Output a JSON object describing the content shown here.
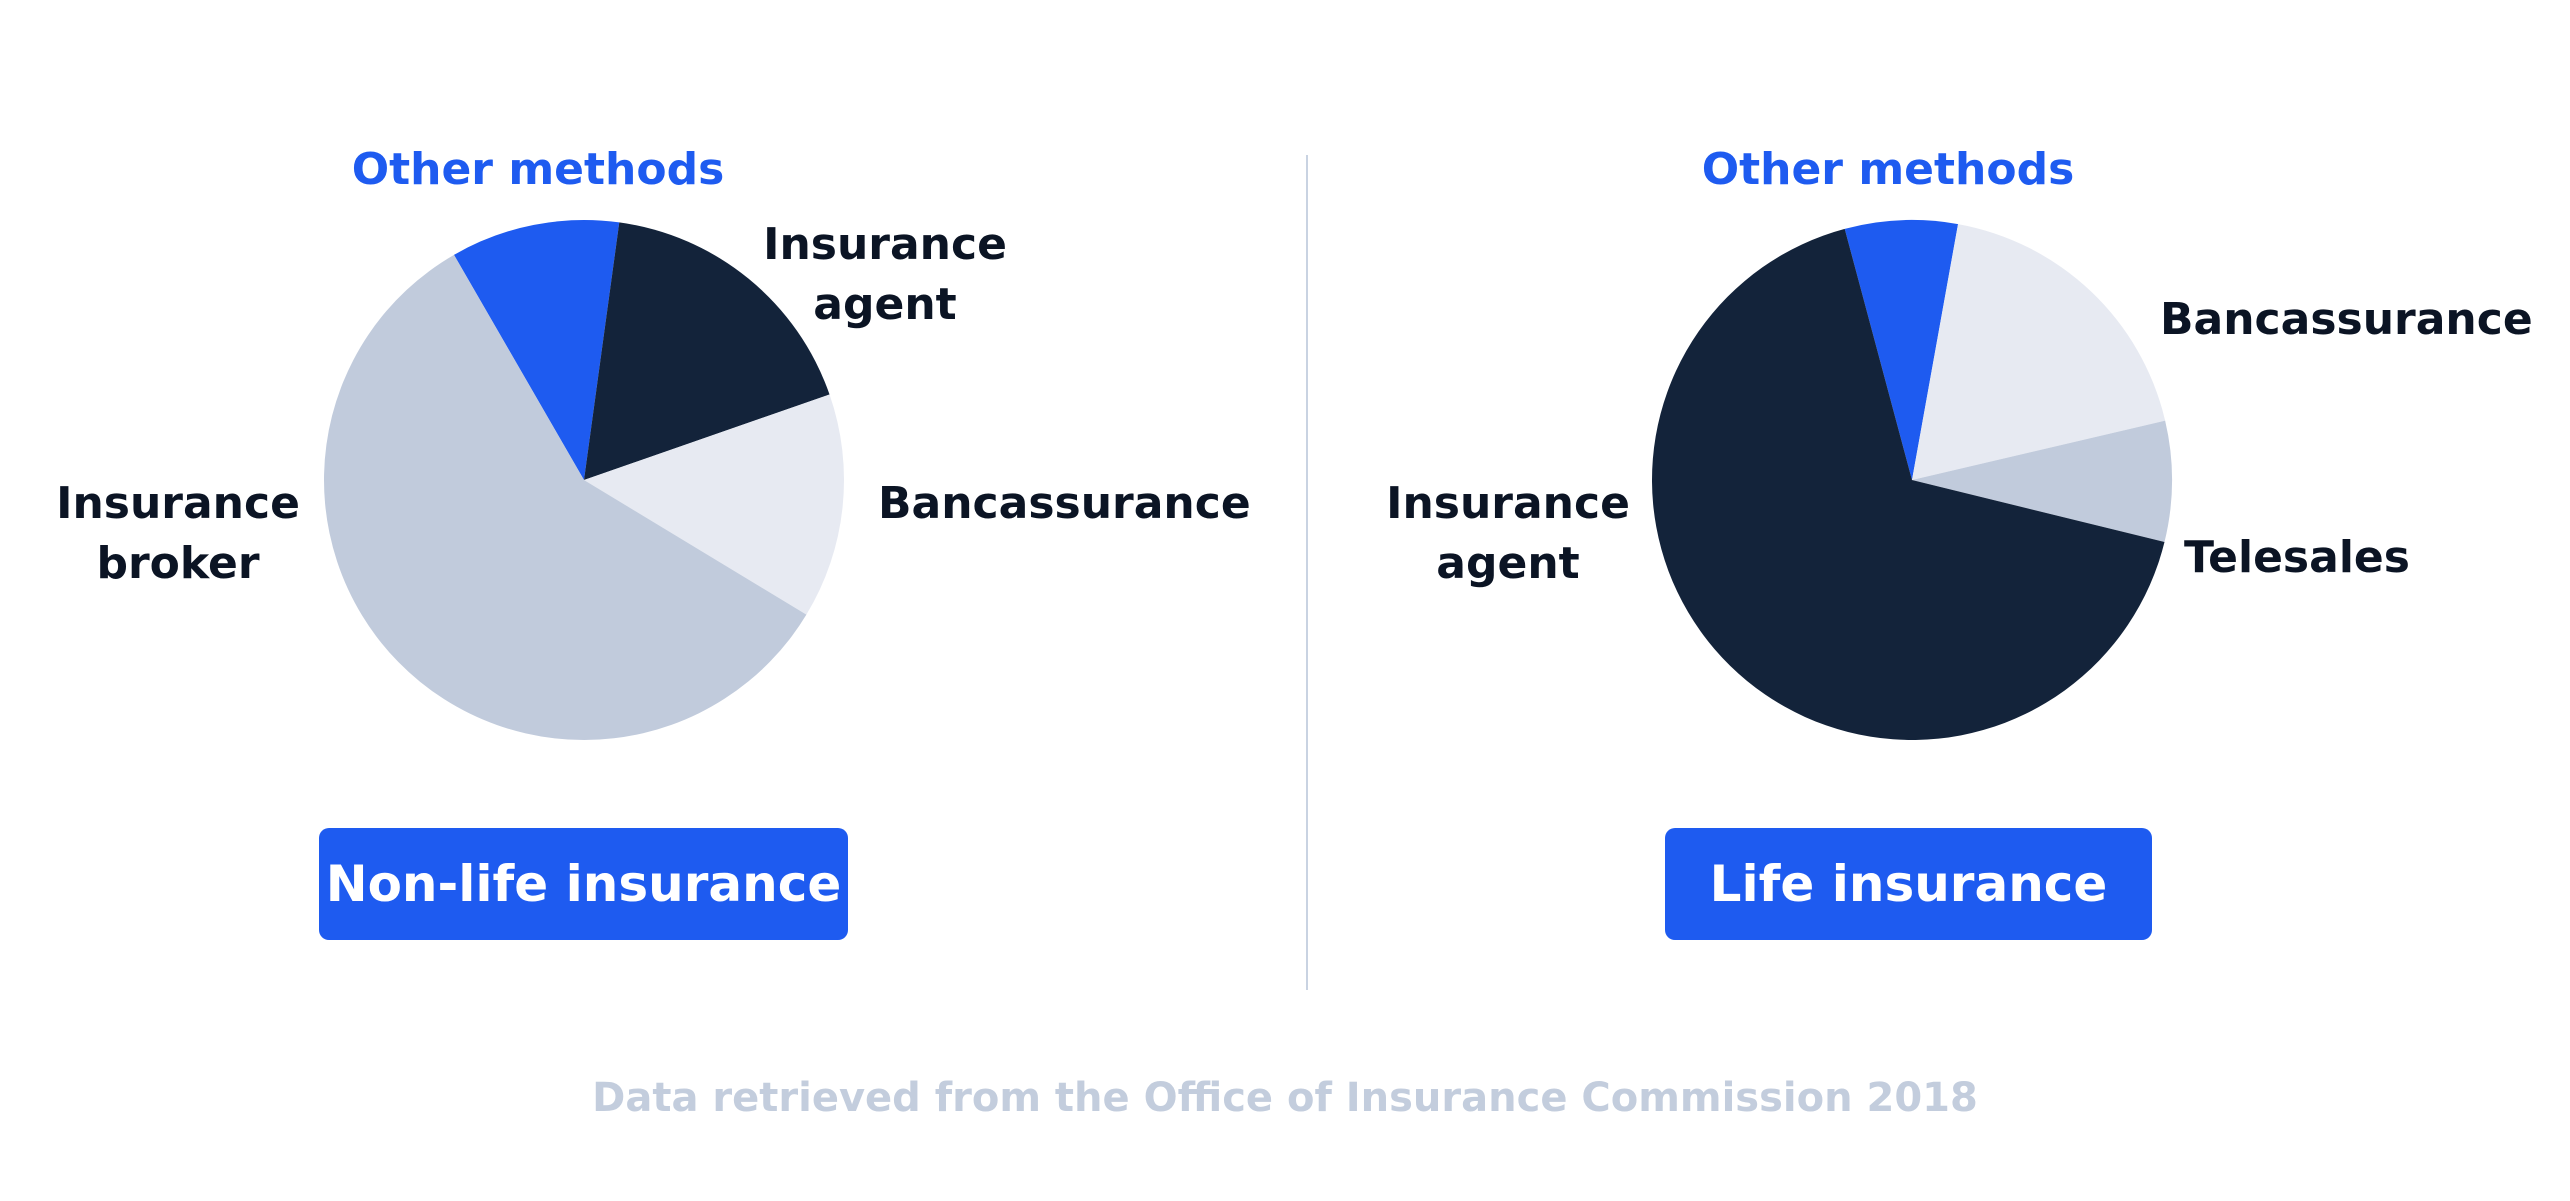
{
  "colors": {
    "dark": "#13233a",
    "blue": "#1e5bf0",
    "light_grey": "#c1cbdc",
    "pale_grey": "#e7eaf2",
    "background": "#ffffff"
  },
  "chart_data": [
    {
      "type": "pie",
      "title": "Non-life insurance",
      "slices": [
        {
          "label": "Other methods",
          "value": 10.5,
          "color": "#1e5bf0"
        },
        {
          "label": "Insurance agent",
          "value": 17.5,
          "color": "#13233a"
        },
        {
          "label": "Bancassurance",
          "value": 14.0,
          "color": "#e7eaf2"
        },
        {
          "label": "Insurance broker",
          "value": 58.0,
          "color": "#c1cbdc"
        }
      ]
    },
    {
      "type": "pie",
      "title": "Life insurance",
      "slices": [
        {
          "label": "Other methods",
          "value": 7.0,
          "color": "#1e5bf0"
        },
        {
          "label": "Bancassurance",
          "value": 18.5,
          "color": "#e7eaf2"
        },
        {
          "label": "Telesales",
          "value": 7.5,
          "color": "#c1cbdc"
        },
        {
          "label": "Insurance agent",
          "value": 67.0,
          "color": "#13233a"
        }
      ]
    }
  ],
  "source_note": "Data retrieved from the Office of Insurance Commission 2018"
}
